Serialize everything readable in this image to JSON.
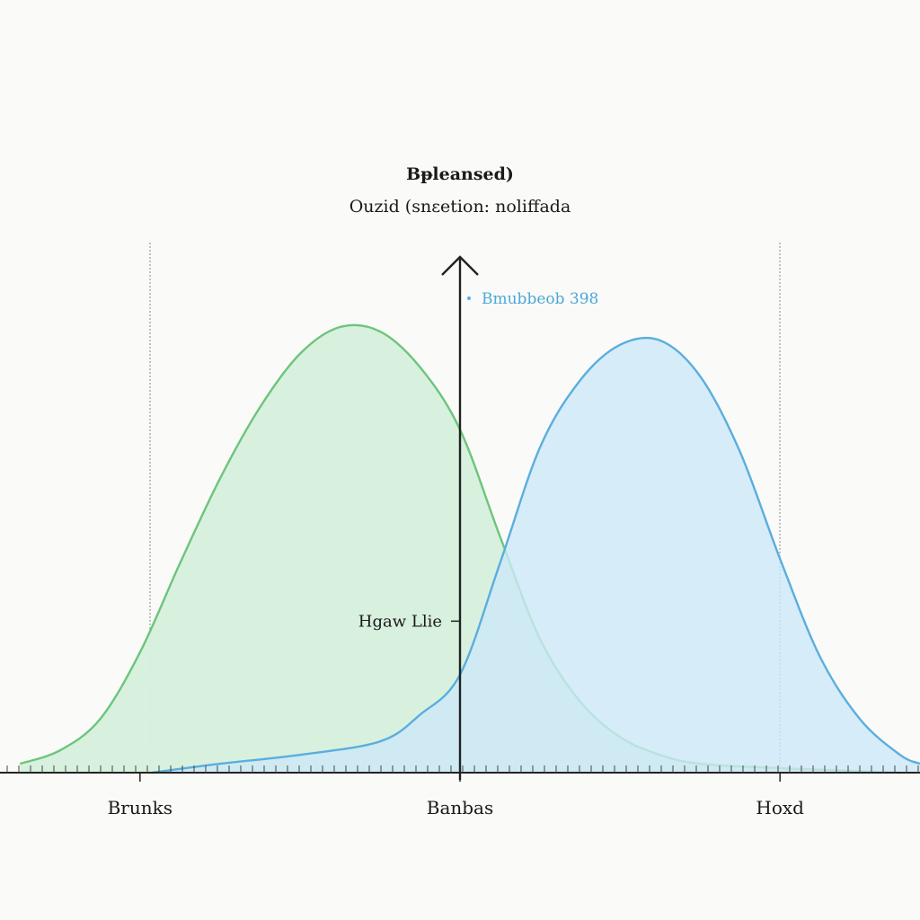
{
  "chart_data": {
    "type": "area",
    "title": "Bᵽleansed)",
    "subtitle": "Ouzid (snεetion: noliffada",
    "x_categories": [
      "Brunks",
      "Banbas",
      "Hoxd"
    ],
    "series": [
      {
        "name": "",
        "color": "#6cc57c",
        "fill": "#d6efdc",
        "points": [
          [
            -1.1,
            0.02
          ],
          [
            -1.0,
            0.05
          ],
          [
            -0.9,
            0.12
          ],
          [
            -0.8,
            0.27
          ],
          [
            -0.7,
            0.47
          ],
          [
            -0.6,
            0.66
          ],
          [
            -0.5,
            0.82
          ],
          [
            -0.4,
            0.94
          ],
          [
            -0.3,
            1.0
          ],
          [
            -0.2,
            0.99
          ],
          [
            -0.1,
            0.91
          ],
          [
            0.0,
            0.77
          ],
          [
            0.1,
            0.53
          ],
          [
            0.2,
            0.3
          ],
          [
            0.3,
            0.16
          ],
          [
            0.4,
            0.08
          ],
          [
            0.5,
            0.04
          ],
          [
            0.6,
            0.02
          ],
          [
            0.8,
            0.01
          ],
          [
            1.1,
            0.0
          ]
        ]
      },
      {
        "name": "Bmubbeob 398",
        "color": "#5aaede",
        "fill": "#cde8f7",
        "points": [
          [
            -0.77,
            0.0
          ],
          [
            -0.6,
            0.02
          ],
          [
            -0.4,
            0.04
          ],
          [
            -0.2,
            0.07
          ],
          [
            -0.1,
            0.13
          ],
          [
            0.0,
            0.22
          ],
          [
            0.1,
            0.47
          ],
          [
            0.2,
            0.73
          ],
          [
            0.3,
            0.88
          ],
          [
            0.4,
            0.96
          ],
          [
            0.5,
            0.97
          ],
          [
            0.6,
            0.89
          ],
          [
            0.7,
            0.72
          ],
          [
            0.8,
            0.48
          ],
          [
            0.9,
            0.26
          ],
          [
            1.0,
            0.12
          ],
          [
            1.1,
            0.04
          ],
          [
            1.15,
            0.02
          ]
        ]
      }
    ],
    "annotations": [
      {
        "label": "Hgaw Llie",
        "y": 0.34
      }
    ],
    "xlim": [
      -1.15,
      1.15
    ],
    "ylim": [
      0,
      1.25
    ],
    "grid": false,
    "legend_position": "top-center"
  }
}
